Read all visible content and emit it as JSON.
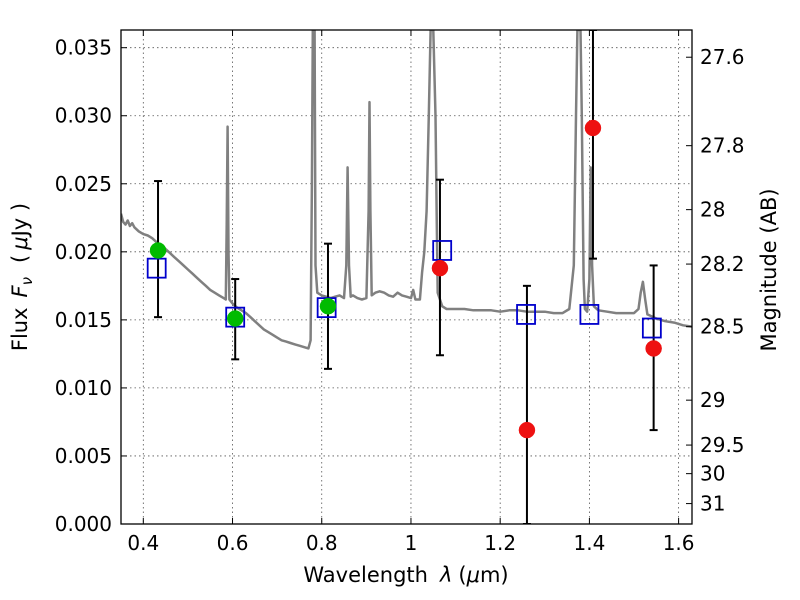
{
  "chart_data": {
    "type": "scatter",
    "xlabel_text": "Wavelength",
    "xlabel_symbol": "λ",
    "xlabel_unit_open": "(",
    "xlabel_unit_mu": "μ",
    "xlabel_unit_rest": "m)",
    "ylabel_text": "Flux",
    "ylabel_symbol": "F",
    "ylabel_sub": "ν",
    "ylabel_unit_open": "(",
    "ylabel_unit_mu": "μ",
    "ylabel_unit_rest": "Jy )",
    "y2label": "Magnitude (AB)",
    "xlim": [
      0.35,
      1.63
    ],
    "ylim": [
      0.0,
      0.0363
    ],
    "grid": true,
    "x_ticks": [
      {
        "value": 0.4,
        "label": "0.4"
      },
      {
        "value": 0.6,
        "label": "0.6"
      },
      {
        "value": 0.8,
        "label": "0.8"
      },
      {
        "value": 1.0,
        "label": "1"
      },
      {
        "value": 1.2,
        "label": "1.2"
      },
      {
        "value": 1.4,
        "label": "1.4"
      },
      {
        "value": 1.6,
        "label": "1.6"
      }
    ],
    "y_ticks": [
      {
        "value": 0.0,
        "label": "0.000"
      },
      {
        "value": 0.005,
        "label": "0.005"
      },
      {
        "value": 0.01,
        "label": "0.010"
      },
      {
        "value": 0.015,
        "label": "0.015"
      },
      {
        "value": 0.02,
        "label": "0.020"
      },
      {
        "value": 0.025,
        "label": "0.025"
      },
      {
        "value": 0.03,
        "label": "0.030"
      },
      {
        "value": 0.035,
        "label": "0.035"
      }
    ],
    "y2_ticks": [
      {
        "flux": 0.0343,
        "label": "27.6"
      },
      {
        "flux": 0.0278,
        "label": "27.8"
      },
      {
        "flux": 0.0231,
        "label": "28"
      },
      {
        "flux": 0.0191,
        "label": "28.2"
      },
      {
        "flux": 0.0145,
        "label": "28.5"
      },
      {
        "flux": 0.0091,
        "label": "29"
      },
      {
        "flux": 0.0058,
        "label": "29.5"
      },
      {
        "flux": 0.0037,
        "label": "30"
      },
      {
        "flux": 0.0015,
        "label": "31"
      }
    ],
    "series": [
      {
        "kind": "spectrum",
        "color": "#808080",
        "points": [
          [
            0.35,
            0.0228
          ],
          [
            0.355,
            0.0222
          ],
          [
            0.36,
            0.022
          ],
          [
            0.365,
            0.0223
          ],
          [
            0.37,
            0.0219
          ],
          [
            0.375,
            0.0221
          ],
          [
            0.38,
            0.0218
          ],
          [
            0.39,
            0.0215
          ],
          [
            0.4,
            0.0213
          ],
          [
            0.41,
            0.0212
          ],
          [
            0.42,
            0.021
          ],
          [
            0.43,
            0.0207
          ],
          [
            0.44,
            0.0205
          ],
          [
            0.45,
            0.0202
          ],
          [
            0.46,
            0.0199
          ],
          [
            0.47,
            0.0196
          ],
          [
            0.48,
            0.0193
          ],
          [
            0.49,
            0.019
          ],
          [
            0.5,
            0.0187
          ],
          [
            0.51,
            0.0184
          ],
          [
            0.52,
            0.0181
          ],
          [
            0.53,
            0.0178
          ],
          [
            0.54,
            0.0175
          ],
          [
            0.55,
            0.0172
          ],
          [
            0.56,
            0.017
          ],
          [
            0.57,
            0.0168
          ],
          [
            0.58,
            0.0166
          ],
          [
            0.585,
            0.0165
          ],
          [
            0.587,
            0.022
          ],
          [
            0.589,
            0.0292
          ],
          [
            0.591,
            0.02
          ],
          [
            0.593,
            0.0165
          ],
          [
            0.6,
            0.0162
          ],
          [
            0.61,
            0.0159
          ],
          [
            0.62,
            0.0157
          ],
          [
            0.63,
            0.0155
          ],
          [
            0.64,
            0.0152
          ],
          [
            0.65,
            0.0149
          ],
          [
            0.66,
            0.0146
          ],
          [
            0.67,
            0.0143
          ],
          [
            0.68,
            0.0141
          ],
          [
            0.69,
            0.0139
          ],
          [
            0.7,
            0.0137
          ],
          [
            0.71,
            0.0135
          ],
          [
            0.72,
            0.0134
          ],
          [
            0.73,
            0.0133
          ],
          [
            0.74,
            0.0132
          ],
          [
            0.75,
            0.0131
          ],
          [
            0.76,
            0.013
          ],
          [
            0.77,
            0.0129
          ],
          [
            0.775,
            0.0135
          ],
          [
            0.778,
            0.025
          ],
          [
            0.78,
            0.0363
          ],
          [
            0.784,
            0.0363
          ],
          [
            0.786,
            0.019
          ],
          [
            0.79,
            0.017
          ],
          [
            0.8,
            0.0168
          ],
          [
            0.81,
            0.0167
          ],
          [
            0.82,
            0.0166
          ],
          [
            0.83,
            0.0167
          ],
          [
            0.84,
            0.0168
          ],
          [
            0.85,
            0.0166
          ],
          [
            0.855,
            0.019
          ],
          [
            0.858,
            0.0262
          ],
          [
            0.861,
            0.019
          ],
          [
            0.865,
            0.0167
          ],
          [
            0.87,
            0.0168
          ],
          [
            0.88,
            0.0166
          ],
          [
            0.89,
            0.0165
          ],
          [
            0.9,
            0.0166
          ],
          [
            0.905,
            0.023
          ],
          [
            0.907,
            0.031
          ],
          [
            0.909,
            0.023
          ],
          [
            0.912,
            0.0168
          ],
          [
            0.92,
            0.017
          ],
          [
            0.93,
            0.0171
          ],
          [
            0.94,
            0.017
          ],
          [
            0.95,
            0.0168
          ],
          [
            0.96,
            0.0167
          ],
          [
            0.97,
            0.017
          ],
          [
            0.98,
            0.0168
          ],
          [
            0.99,
            0.0167
          ],
          [
            1.0,
            0.0166
          ],
          [
            1.005,
            0.0172
          ],
          [
            1.01,
            0.0165
          ],
          [
            1.02,
            0.0165
          ],
          [
            1.025,
            0.0185
          ],
          [
            1.03,
            0.02
          ],
          [
            1.035,
            0.023
          ],
          [
            1.04,
            0.03
          ],
          [
            1.044,
            0.0363
          ],
          [
            1.05,
            0.0363
          ],
          [
            1.055,
            0.03
          ],
          [
            1.058,
            0.022
          ],
          [
            1.06,
            0.017
          ],
          [
            1.07,
            0.016
          ],
          [
            1.08,
            0.0158
          ],
          [
            1.1,
            0.0158
          ],
          [
            1.12,
            0.0158
          ],
          [
            1.14,
            0.0157
          ],
          [
            1.16,
            0.0157
          ],
          [
            1.18,
            0.0157
          ],
          [
            1.2,
            0.0156
          ],
          [
            1.22,
            0.0157
          ],
          [
            1.24,
            0.0157
          ],
          [
            1.26,
            0.0156
          ],
          [
            1.28,
            0.0156
          ],
          [
            1.3,
            0.0156
          ],
          [
            1.32,
            0.0155
          ],
          [
            1.34,
            0.0155
          ],
          [
            1.355,
            0.0158
          ],
          [
            1.365,
            0.019
          ],
          [
            1.37,
            0.03
          ],
          [
            1.373,
            0.0363
          ],
          [
            1.38,
            0.0363
          ],
          [
            1.383,
            0.03
          ],
          [
            1.387,
            0.018
          ],
          [
            1.39,
            0.0158
          ],
          [
            1.395,
            0.0156
          ],
          [
            1.4,
            0.018
          ],
          [
            1.403,
            0.0262
          ],
          [
            1.406,
            0.019
          ],
          [
            1.41,
            0.016
          ],
          [
            1.42,
            0.0157
          ],
          [
            1.44,
            0.0156
          ],
          [
            1.46,
            0.0155
          ],
          [
            1.48,
            0.0155
          ],
          [
            1.5,
            0.0155
          ],
          [
            1.51,
            0.0158
          ],
          [
            1.515,
            0.017
          ],
          [
            1.52,
            0.0178
          ],
          [
            1.525,
            0.0165
          ],
          [
            1.53,
            0.0154
          ],
          [
            1.55,
            0.0151
          ],
          [
            1.57,
            0.0149
          ],
          [
            1.59,
            0.0148
          ],
          [
            1.61,
            0.0146
          ],
          [
            1.63,
            0.0145
          ]
        ]
      },
      {
        "kind": "errorbar",
        "color": "#000000",
        "bars": [
          {
            "x": 0.433,
            "low": 0.0152,
            "high": 0.0252
          },
          {
            "x": 0.606,
            "low": 0.0121,
            "high": 0.018
          },
          {
            "x": 0.814,
            "low": 0.0114,
            "high": 0.0206
          },
          {
            "x": 1.065,
            "low": 0.0124,
            "high": 0.0253
          },
          {
            "x": 1.26,
            "low": 0.0,
            "high": 0.0175
          },
          {
            "x": 1.408,
            "low": 0.0195,
            "high": 0.0363
          },
          {
            "x": 1.544,
            "low": 0.0069,
            "high": 0.019
          }
        ]
      },
      {
        "kind": "model-box",
        "color": "#0000cc",
        "points": [
          {
            "x": 0.43,
            "y": 0.0188
          },
          {
            "x": 0.606,
            "y": 0.0152
          },
          {
            "x": 0.811,
            "y": 0.0159
          },
          {
            "x": 1.07,
            "y": 0.0201
          },
          {
            "x": 1.258,
            "y": 0.0154
          },
          {
            "x": 1.4,
            "y": 0.0154
          },
          {
            "x": 1.54,
            "y": 0.0144
          }
        ]
      },
      {
        "kind": "detected",
        "color": "#00bb00",
        "points": [
          {
            "x": 0.433,
            "y": 0.0201
          },
          {
            "x": 0.606,
            "y": 0.0151
          },
          {
            "x": 0.814,
            "y": 0.016
          }
        ]
      },
      {
        "kind": "measured",
        "color": "#ee1111",
        "points": [
          {
            "x": 1.065,
            "y": 0.0188
          },
          {
            "x": 1.26,
            "y": 0.0069
          },
          {
            "x": 1.408,
            "y": 0.0291
          },
          {
            "x": 1.544,
            "y": 0.0129
          }
        ]
      }
    ]
  }
}
